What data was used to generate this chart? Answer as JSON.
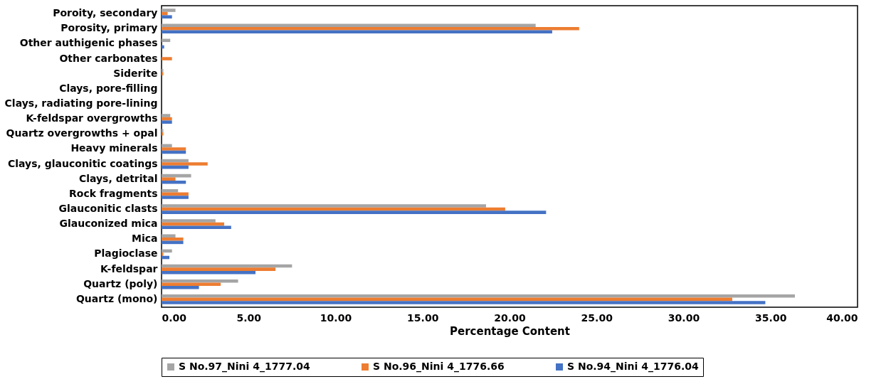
{
  "chart_data": {
    "type": "bar",
    "orientation": "horizontal",
    "xlabel": "Percentage Content",
    "legend": "bottom",
    "categories": [
      "Poroity, secondary",
      "Porosity, primary",
      "Other authigenic phases",
      "Other carbonates",
      "Siderite",
      "Clays, pore-filling",
      "Clays, radiating pore-lining",
      "K-feldspar overgrowths",
      "Quartz overgrowths + opal",
      "Heavy minerals",
      "Clays, glauconitic coatings",
      "Clays, detrital",
      "Rock fragments",
      "Glauconitic clasts",
      "Glauconized mica",
      "Mica",
      "Plagioclase",
      "K-feldspar",
      "Quartz (poly)",
      "Quartz (mono)"
    ],
    "series": [
      {
        "name": "S No.97_Nini 4_1777.04",
        "color": "#a5a5a5",
        "values": [
          0.8,
          21.5,
          0.5,
          0,
          0.1,
          0,
          0,
          0.5,
          0.1,
          0.6,
          1.55,
          1.7,
          0.95,
          18.65,
          3.1,
          0.8,
          0.6,
          7.5,
          4.4,
          36.4
        ]
      },
      {
        "name": "S No.96_Nini 4_1776.66",
        "color": "#ed7d31",
        "values": [
          0.35,
          24.0,
          0,
          0.6,
          0.1,
          0,
          0,
          0.6,
          0.1,
          1.4,
          2.65,
          0.8,
          1.55,
          19.75,
          3.6,
          1.25,
          0.1,
          6.55,
          3.4,
          32.8
        ]
      },
      {
        "name": "S No.94_Nini 4_1776.04",
        "color": "#4472c4",
        "values": [
          0.6,
          22.45,
          0.15,
          0,
          0,
          0,
          0,
          0.6,
          0,
          1.4,
          1.55,
          1.4,
          1.55,
          22.1,
          4.0,
          1.25,
          0.45,
          5.4,
          2.15,
          34.7
        ]
      }
    ],
    "xlim": [
      0,
      40
    ],
    "xticks": [
      {
        "value": 0,
        "label": "0.00"
      },
      {
        "value": 5,
        "label": "5.00"
      },
      {
        "value": 10,
        "label": "10.00"
      },
      {
        "value": 15,
        "label": "15.00"
      },
      {
        "value": 20,
        "label": "20.00"
      },
      {
        "value": 25,
        "label": "25.00"
      },
      {
        "value": 30,
        "label": "30.00"
      },
      {
        "value": 35,
        "label": "35.00"
      },
      {
        "value": 40,
        "label": "40.00"
      }
    ]
  }
}
